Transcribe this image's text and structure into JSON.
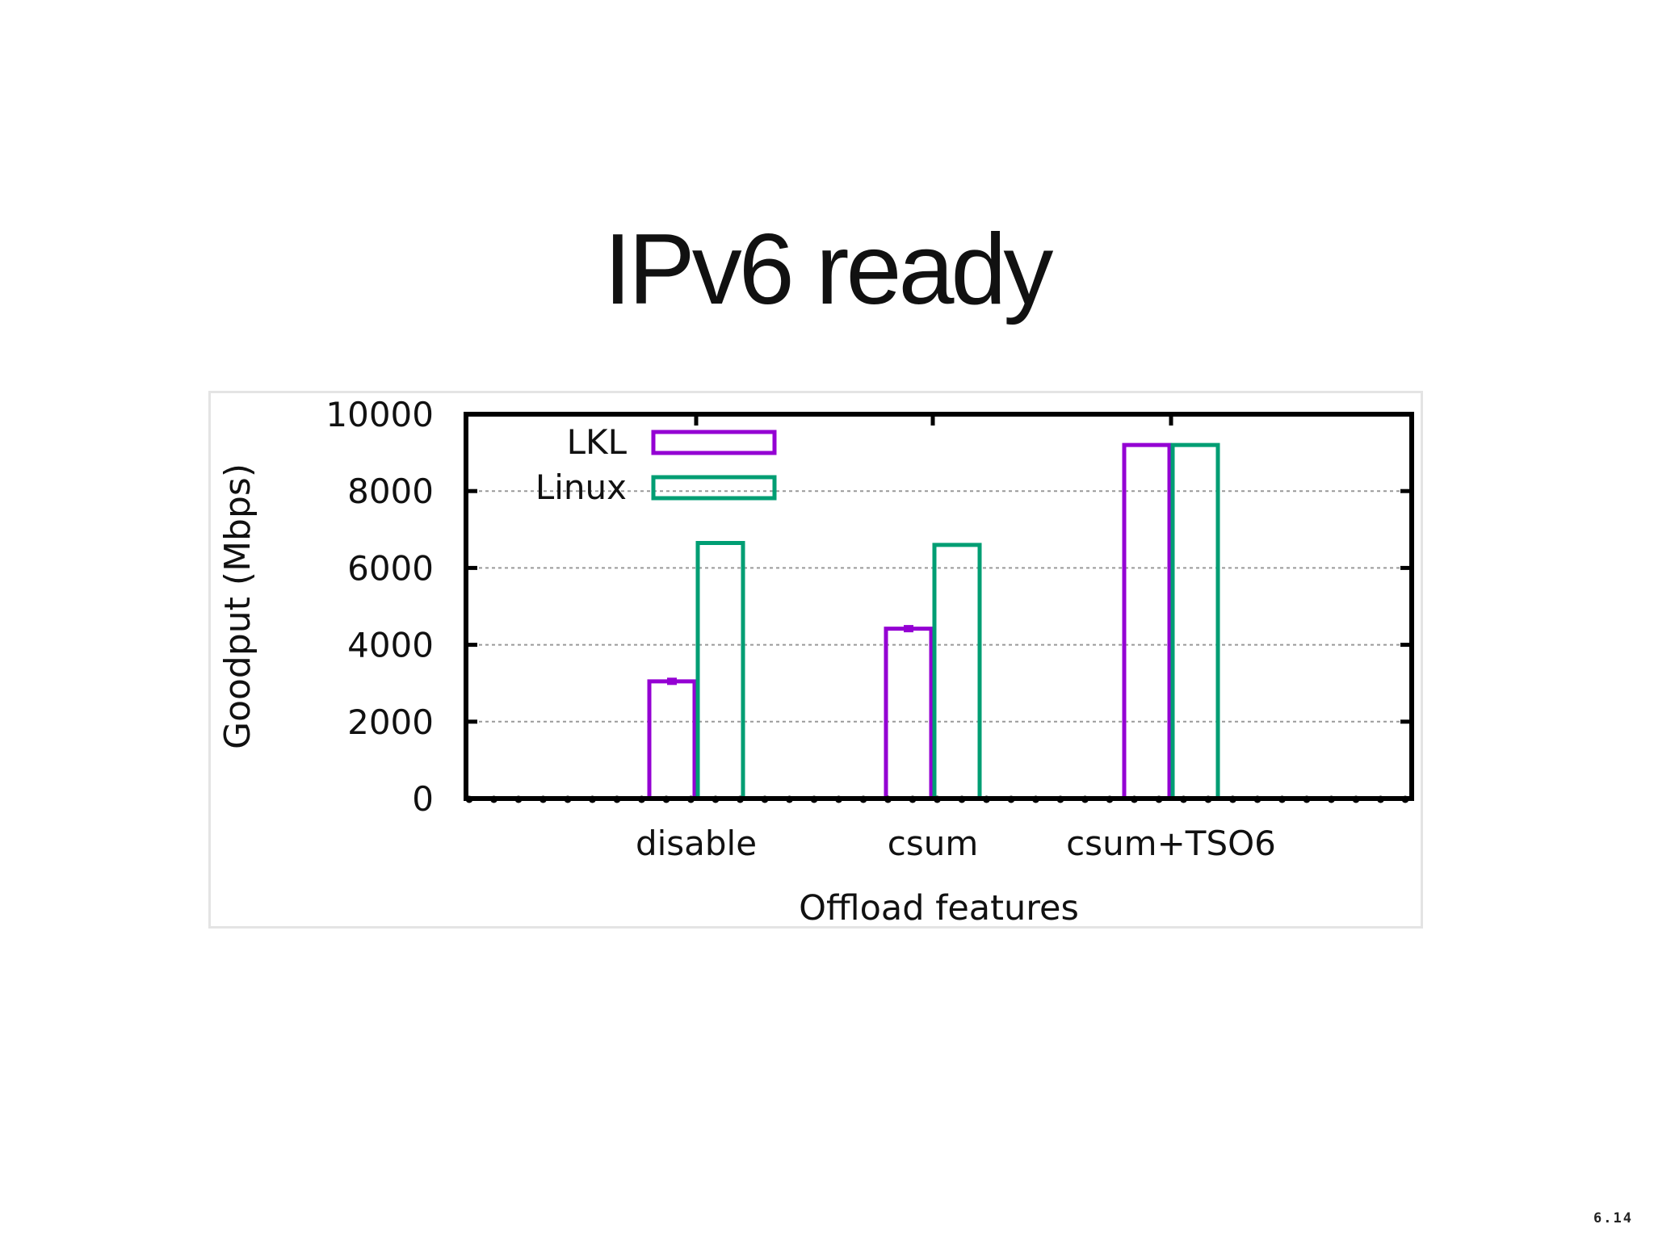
{
  "slide": {
    "title": "IPv6 ready",
    "page_number": "6.14"
  },
  "chart_data": {
    "type": "bar",
    "title": "",
    "xlabel": "Offload features",
    "ylabel": "Goodput (Mbps)",
    "ylim": [
      0,
      10000
    ],
    "yticks": [
      0,
      2000,
      4000,
      6000,
      8000,
      10000
    ],
    "categories": [
      "disable",
      "csum",
      "csum+TSO6"
    ],
    "series": [
      {
        "name": "LKL",
        "values": [
          3050,
          4420,
          9200
        ],
        "color": "#9400d3"
      },
      {
        "name": "Linux",
        "values": [
          6650,
          6600,
          9200
        ],
        "color": "#009e73"
      }
    ],
    "grid": true,
    "legend_position": "top-left"
  }
}
